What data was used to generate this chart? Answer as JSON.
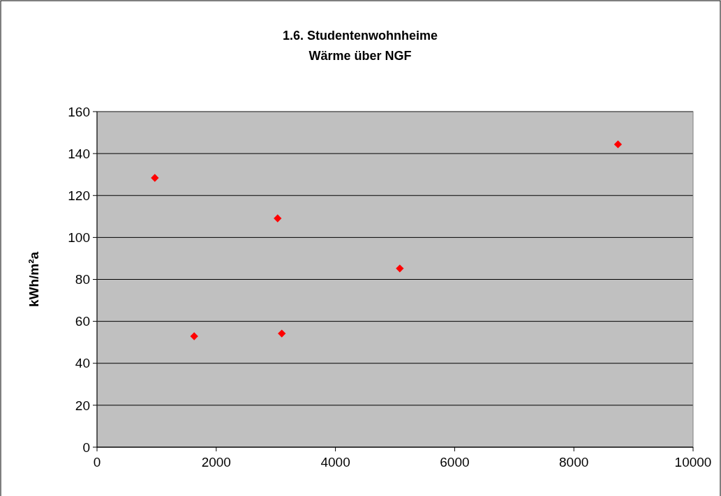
{
  "chart_data": {
    "type": "scatter",
    "title": "1.6. Studentenwohnheime",
    "subtitle": "Wärme über NGF",
    "ylabel": "kWh/m²a",
    "x": [
      970,
      1630,
      3030,
      3100,
      5080,
      8740
    ],
    "series": [
      {
        "color": "#ff0000",
        "values": [
          128.4,
          52.9,
          109.1,
          54.2,
          85.2,
          144.4
        ]
      }
    ],
    "xlim": [
      0,
      10000
    ],
    "xticks": [
      0,
      2000,
      4000,
      6000,
      8000,
      10000
    ],
    "ylim": [
      0,
      160
    ],
    "yticks": [
      0,
      20,
      40,
      60,
      80,
      100,
      120,
      140,
      160
    ],
    "grid": "y",
    "marker": "diamond"
  }
}
